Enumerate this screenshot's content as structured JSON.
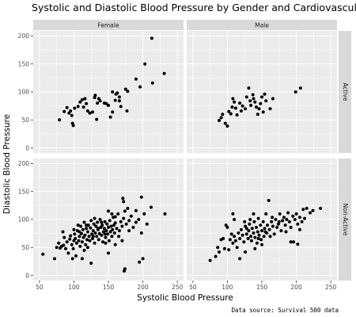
{
  "title": "Systolic and Diastolic Blood Pressure by Gender and Cardiovascular Activity",
  "caption": "Data source: Survival 500 data",
  "chart_data": {
    "type": "scatter",
    "title": "Systolic and Diastolic Blood Pressure by Gender and Cardiovascular Activity",
    "xlabel": "Systolic Blood Pressure",
    "ylabel": "Diastolic Blood Pressure",
    "xlim": [
      50,
      250
    ],
    "ylim": [
      0,
      200
    ],
    "x_ticks": [
      "50",
      "100",
      "150",
      "200",
      "250"
    ],
    "y_ticks": [
      "0",
      "50",
      "100",
      "150",
      "200"
    ],
    "facet_columns": [
      "Female",
      "Male"
    ],
    "facet_rows": [
      "Active",
      "Non-Active"
    ],
    "grid": true,
    "point_color": "#000000",
    "panel_background": "#ebebeb",
    "panels": [
      {
        "column": "Female",
        "row": "Active",
        "points": [
          [
            79,
            50
          ],
          [
            86,
            65
          ],
          [
            90,
            72
          ],
          [
            93,
            62
          ],
          [
            95,
            66
          ],
          [
            97,
            58
          ],
          [
            98,
            44
          ],
          [
            99,
            40
          ],
          [
            101,
            71
          ],
          [
            106,
            74
          ],
          [
            109,
            82
          ],
          [
            112,
            86
          ],
          [
            114,
            73
          ],
          [
            116,
            88
          ],
          [
            118,
            79
          ],
          [
            120,
            66
          ],
          [
            123,
            62
          ],
          [
            127,
            64
          ],
          [
            130,
            90
          ],
          [
            131,
            94
          ],
          [
            133,
            51
          ],
          [
            134,
            80
          ],
          [
            136,
            88
          ],
          [
            138,
            84
          ],
          [
            144,
            80
          ],
          [
            147,
            79
          ],
          [
            150,
            76
          ],
          [
            153,
            55
          ],
          [
            156,
            100
          ],
          [
            156,
            64
          ],
          [
            160,
            85
          ],
          [
            161,
            96
          ],
          [
            163,
            98
          ],
          [
            166,
            91
          ],
          [
            166,
            84
          ],
          [
            168,
            74
          ],
          [
            175,
            105
          ],
          [
            177,
            66
          ],
          [
            178,
            101
          ],
          [
            190,
            123
          ],
          [
            196,
            109
          ],
          [
            203,
            150
          ],
          [
            213,
            196
          ],
          [
            214,
            116
          ],
          [
            231,
            133
          ]
        ]
      },
      {
        "column": "Male",
        "row": "Active",
        "points": [
          [
            88,
            49
          ],
          [
            91,
            54
          ],
          [
            93,
            60
          ],
          [
            97,
            44
          ],
          [
            100,
            39
          ],
          [
            102,
            65
          ],
          [
            105,
            61
          ],
          [
            107,
            73
          ],
          [
            108,
            88
          ],
          [
            110,
            82
          ],
          [
            112,
            71
          ],
          [
            114,
            59
          ],
          [
            118,
            80
          ],
          [
            120,
            66
          ],
          [
            122,
            75
          ],
          [
            126,
            70
          ],
          [
            128,
            91
          ],
          [
            131,
            107
          ],
          [
            133,
            84
          ],
          [
            134,
            76
          ],
          [
            137,
            95
          ],
          [
            138,
            88
          ],
          [
            140,
            82
          ],
          [
            142,
            73
          ],
          [
            144,
            60
          ],
          [
            146,
            70
          ],
          [
            148,
            79
          ],
          [
            150,
            91
          ],
          [
            152,
            64
          ],
          [
            154,
            96
          ],
          [
            156,
            84
          ],
          [
            162,
            70
          ],
          [
            166,
            88
          ],
          [
            199,
            100
          ],
          [
            206,
            107
          ]
        ]
      },
      {
        "column": "Female",
        "row": "Non-Active",
        "points": [
          [
            55,
            38
          ],
          [
            72,
            30
          ],
          [
            75,
            50
          ],
          [
            78,
            58
          ],
          [
            80,
            49
          ],
          [
            82,
            52
          ],
          [
            84,
            78
          ],
          [
            85,
            54
          ],
          [
            86,
            68
          ],
          [
            88,
            48
          ],
          [
            90,
            60
          ],
          [
            92,
            40
          ],
          [
            94,
            65
          ],
          [
            95,
            71
          ],
          [
            97,
            55
          ],
          [
            98,
            30
          ],
          [
            99,
            48
          ],
          [
            100,
            62
          ],
          [
            101,
            74
          ],
          [
            102,
            66
          ],
          [
            103,
            35
          ],
          [
            104,
            58
          ],
          [
            105,
            80
          ],
          [
            106,
            90
          ],
          [
            107,
            62
          ],
          [
            108,
            70
          ],
          [
            109,
            52
          ],
          [
            110,
            88
          ],
          [
            111,
            75
          ],
          [
            112,
            60
          ],
          [
            113,
            82
          ],
          [
            114,
            68
          ],
          [
            115,
            95
          ],
          [
            116,
            72
          ],
          [
            117,
            55
          ],
          [
            118,
            84
          ],
          [
            119,
            64
          ],
          [
            120,
            78
          ],
          [
            121,
            90
          ],
          [
            122,
            70
          ],
          [
            123,
            62
          ],
          [
            124,
            85
          ],
          [
            125,
            98
          ],
          [
            126,
            74
          ],
          [
            127,
            66
          ],
          [
            128,
            80
          ],
          [
            129,
            92
          ],
          [
            130,
            58
          ],
          [
            131,
            76
          ],
          [
            132,
            88
          ],
          [
            133,
            70
          ],
          [
            134,
            95
          ],
          [
            135,
            82
          ],
          [
            136,
            64
          ],
          [
            137,
            75
          ],
          [
            138,
            100
          ],
          [
            139,
            86
          ],
          [
            140,
            72
          ],
          [
            141,
            90
          ],
          [
            142,
            60
          ],
          [
            143,
            78
          ],
          [
            144,
            84
          ],
          [
            145,
            96
          ],
          [
            146,
            68
          ],
          [
            147,
            80
          ],
          [
            148,
            92
          ],
          [
            149,
            74
          ],
          [
            150,
            86
          ],
          [
            151,
            62
          ],
          [
            152,
            98
          ],
          [
            153,
            78
          ],
          [
            154,
            88
          ],
          [
            155,
            70
          ],
          [
            156,
            82
          ],
          [
            157,
            104
          ],
          [
            158,
            90
          ],
          [
            159,
            76
          ],
          [
            160,
            94
          ],
          [
            162,
            84
          ],
          [
            164,
            110
          ],
          [
            166,
            80
          ],
          [
            168,
            96
          ],
          [
            170,
            88
          ],
          [
            172,
            102
          ],
          [
            174,
            115
          ],
          [
            176,
            92
          ],
          [
            178,
            120
          ],
          [
            180,
            98
          ],
          [
            183,
            106
          ],
          [
            186,
            86
          ],
          [
            190,
            116
          ],
          [
            194,
            100
          ],
          [
            198,
            76
          ],
          [
            202,
            110
          ],
          [
            206,
            92
          ],
          [
            212,
            122
          ],
          [
            232,
            110
          ],
          [
            112,
            30
          ],
          [
            125,
            22
          ],
          [
            146,
            58
          ],
          [
            150,
            40
          ],
          [
            160,
            55
          ],
          [
            170,
            62
          ],
          [
            171,
            138
          ],
          [
            172,
            132
          ],
          [
            173,
            8
          ],
          [
            174,
            12
          ],
          [
            195,
            24
          ],
          [
            200,
            30
          ],
          [
            198,
            140
          ],
          [
            145,
            74
          ],
          [
            135,
            84
          ],
          [
            128,
            70
          ],
          [
            118,
            90
          ],
          [
            108,
            78
          ],
          [
            115,
            45
          ],
          [
            140,
            95
          ],
          [
            155,
            110
          ],
          [
            165,
            70
          ],
          [
            180,
            80
          ],
          [
            190,
            95
          ],
          [
            100,
            82
          ],
          [
            130,
            102
          ],
          [
            120,
            50
          ],
          [
            160,
            105
          ],
          [
            150,
            115
          ]
        ]
      },
      {
        "column": "Male",
        "row": "Non-Active",
        "points": [
          [
            75,
            27
          ],
          [
            83,
            34
          ],
          [
            86,
            50
          ],
          [
            88,
            42
          ],
          [
            91,
            64
          ],
          [
            94,
            66
          ],
          [
            96,
            48
          ],
          [
            98,
            90
          ],
          [
            100,
            86
          ],
          [
            102,
            46
          ],
          [
            104,
            64
          ],
          [
            106,
            74
          ],
          [
            108,
            58
          ],
          [
            110,
            70
          ],
          [
            112,
            62
          ],
          [
            114,
            50
          ],
          [
            116,
            76
          ],
          [
            118,
            66
          ],
          [
            120,
            82
          ],
          [
            122,
            72
          ],
          [
            124,
            60
          ],
          [
            126,
            88
          ],
          [
            128,
            74
          ],
          [
            130,
            66
          ],
          [
            131,
            80
          ],
          [
            132,
            92
          ],
          [
            134,
            70
          ],
          [
            135,
            62
          ],
          [
            136,
            84
          ],
          [
            138,
            76
          ],
          [
            139,
            96
          ],
          [
            140,
            68
          ],
          [
            142,
            86
          ],
          [
            143,
            58
          ],
          [
            144,
            78
          ],
          [
            145,
            102
          ],
          [
            146,
            72
          ],
          [
            148,
            90
          ],
          [
            149,
            64
          ],
          [
            150,
            80
          ],
          [
            152,
            96
          ],
          [
            153,
            70
          ],
          [
            154,
            84
          ],
          [
            156,
            110
          ],
          [
            157,
            76
          ],
          [
            158,
            90
          ],
          [
            160,
            134
          ],
          [
            161,
            82
          ],
          [
            162,
            70
          ],
          [
            164,
            96
          ],
          [
            166,
            88
          ],
          [
            168,
            74
          ],
          [
            170,
            100
          ],
          [
            172,
            86
          ],
          [
            174,
            92
          ],
          [
            176,
            110
          ],
          [
            178,
            80
          ],
          [
            180,
            98
          ],
          [
            182,
            104
          ],
          [
            184,
            90
          ],
          [
            186,
            100
          ],
          [
            188,
            112
          ],
          [
            190,
            96
          ],
          [
            192,
            86
          ],
          [
            195,
            106
          ],
          [
            198,
            100
          ],
          [
            200,
            110
          ],
          [
            202,
            92
          ],
          [
            205,
            104
          ],
          [
            208,
            96
          ],
          [
            210,
            118
          ],
          [
            212,
            102
          ],
          [
            215,
            120
          ],
          [
            220,
            112
          ],
          [
            224,
            116
          ],
          [
            235,
            120
          ],
          [
            196,
            60
          ],
          [
            202,
            56
          ],
          [
            118,
            30
          ],
          [
            126,
            42
          ],
          [
            140,
            48
          ],
          [
            150,
            55
          ],
          [
            110,
            100
          ],
          [
            108,
            110
          ],
          [
            125,
            96
          ],
          [
            133,
            100
          ],
          [
            145,
            66
          ],
          [
            155,
            78
          ],
          [
            165,
            104
          ],
          [
            175,
            96
          ],
          [
            185,
            78
          ],
          [
            192,
            60
          ],
          [
            205,
            82
          ],
          [
            138,
            110
          ],
          [
            128,
            84
          ]
        ]
      }
    ]
  }
}
